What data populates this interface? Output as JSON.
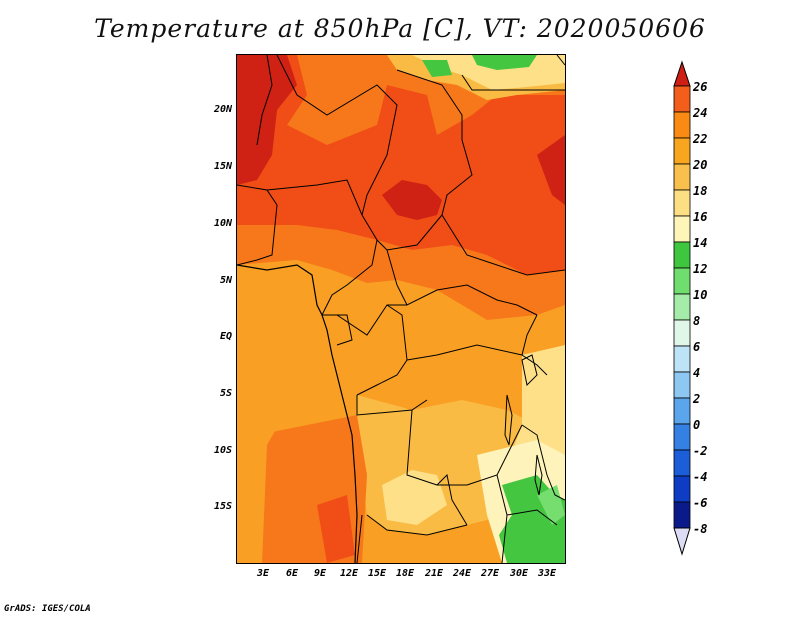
{
  "title": "Temperature at 850hPa [C], VT: 2020050606",
  "credit": "GrADS: IGES/COLA",
  "lat_labels": [
    "20N",
    "15N",
    "10N",
    "5N",
    "EQ",
    "5S",
    "10S",
    "15S"
  ],
  "lon_labels": [
    "3E",
    "6E",
    "9E",
    "12E",
    "15E",
    "18E",
    "21E",
    "24E",
    "27E",
    "30E",
    "33E"
  ],
  "colorbar": {
    "labels": [
      "26",
      "24",
      "22",
      "20",
      "18",
      "16",
      "14",
      "12",
      "10",
      "8",
      "6",
      "4",
      "2",
      "0",
      "-2",
      "-4",
      "-6",
      "-8"
    ],
    "colors": [
      "#d7301f",
      "#f35f1a",
      "#f98a14",
      "#f8a520",
      "#f9c04e",
      "#fddf83",
      "#fef5b9",
      "#3fc63f",
      "#6fde6f",
      "#a5ecaa",
      "#dff6e8",
      "#bde3f6",
      "#8ec7f2",
      "#5ba5ec",
      "#3580e3",
      "#1c5ed8",
      "#0e3cc4",
      "#0b1a8a"
    ],
    "top_color": "#cf1e14",
    "bottom_color": "#dcdcf5"
  },
  "palette": {
    "t26": "#cf2214",
    "t24": "#f04e16",
    "t22": "#f7781a",
    "t20": "#f9a024",
    "t18": "#f9bb44",
    "t16": "#fde088",
    "t14": "#fef3ba",
    "t12": "#44c641",
    "t10": "#75de6e"
  }
}
